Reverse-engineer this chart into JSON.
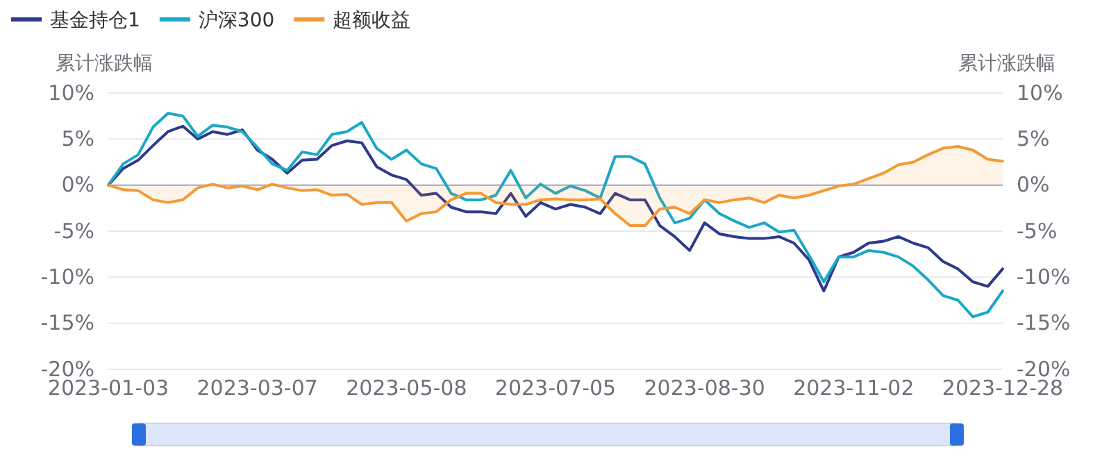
{
  "chart_data": {
    "type": "line",
    "ylabel": "累计涨跌幅",
    "y2label": "累计涨跌幅",
    "categories": [
      "2023-01-03",
      null,
      null,
      null,
      null,
      null,
      null,
      null,
      null,
      null,
      "2023-03-07",
      null,
      null,
      null,
      null,
      null,
      null,
      null,
      null,
      null,
      "2023-05-08",
      null,
      null,
      null,
      null,
      null,
      null,
      null,
      null,
      null,
      "2023-07-05",
      null,
      null,
      null,
      null,
      null,
      null,
      null,
      null,
      null,
      "2023-08-30",
      null,
      null,
      null,
      null,
      null,
      null,
      null,
      null,
      null,
      "2023-11-02",
      null,
      null,
      null,
      null,
      null,
      null,
      null,
      null,
      null,
      "2023-12-28"
    ],
    "series": [
      {
        "name": "基金持仓1",
        "color": "#2e3a8c",
        "values": [
          0,
          1.8,
          2.7,
          4.3,
          5.8,
          6.4,
          5.0,
          5.8,
          5.5,
          6.0,
          3.8,
          2.8,
          1.3,
          2.7,
          2.8,
          4.3,
          4.8,
          4.6,
          2.0,
          1.1,
          0.6,
          -1.1,
          -0.9,
          -2.4,
          -2.9,
          -2.9,
          -3.1,
          -0.9,
          -3.4,
          -1.9,
          -2.6,
          -2.1,
          -2.4,
          -3.1,
          -0.9,
          -1.6,
          -1.6,
          -4.4,
          -5.6,
          -7.1,
          -4.1,
          -5.3,
          -5.6,
          -5.8,
          -5.8,
          -5.6,
          -6.3,
          -8.1,
          -11.5,
          -7.8,
          -7.3,
          -6.3,
          -6.1,
          -5.6,
          -6.3,
          -6.8,
          -8.3,
          -9.1,
          -10.5,
          -11.0,
          -9.1
        ]
      },
      {
        "name": "沪深300",
        "color": "#1ba8c6",
        "values": [
          0,
          2.3,
          3.3,
          6.3,
          7.8,
          7.5,
          5.3,
          6.5,
          6.3,
          5.8,
          4.1,
          2.3,
          1.6,
          3.6,
          3.3,
          5.5,
          5.8,
          6.8,
          4.0,
          2.8,
          3.8,
          2.3,
          1.8,
          -0.9,
          -1.6,
          -1.6,
          -1.1,
          1.6,
          -1.4,
          0.1,
          -0.9,
          -0.1,
          -0.6,
          -1.4,
          3.1,
          3.1,
          2.3,
          -1.4,
          -4.1,
          -3.6,
          -1.6,
          -3.1,
          -3.9,
          -4.6,
          -4.1,
          -5.1,
          -4.9,
          -7.6,
          -10.5,
          -7.8,
          -7.8,
          -7.1,
          -7.3,
          -7.8,
          -8.8,
          -10.3,
          -12.0,
          -12.5,
          -14.3,
          -13.8,
          -11.5
        ]
      },
      {
        "name": "超额收益",
        "type": "area",
        "color": "#f39a37",
        "values": [
          0,
          -0.5,
          -0.6,
          -1.6,
          -1.9,
          -1.6,
          -0.3,
          0.1,
          -0.3,
          -0.1,
          -0.5,
          0.1,
          -0.3,
          -0.6,
          -0.5,
          -1.1,
          -1.0,
          -2.1,
          -1.9,
          -1.9,
          -3.9,
          -3.1,
          -2.9,
          -1.6,
          -0.9,
          -0.9,
          -1.9,
          -2.1,
          -2.1,
          -1.6,
          -1.5,
          -1.6,
          -1.6,
          -1.5,
          -3.1,
          -4.4,
          -4.4,
          -2.6,
          -2.4,
          -3.1,
          -1.6,
          -1.9,
          -1.6,
          -1.4,
          -1.9,
          -1.1,
          -1.4,
          -1.1,
          -0.6,
          -0.1,
          0.1,
          0.7,
          1.3,
          2.2,
          2.5,
          3.3,
          4.0,
          4.2,
          3.8,
          2.8,
          2.6
        ]
      }
    ],
    "ylim": [
      -20,
      10
    ],
    "yticks": [
      {
        "value": -20,
        "label": "-20%"
      },
      {
        "value": -15,
        "label": "-15%"
      },
      {
        "value": -10,
        "label": "-10%"
      },
      {
        "value": -5,
        "label": "-5%"
      },
      {
        "value": 0,
        "label": "0%"
      },
      {
        "value": 5,
        "label": "5%"
      },
      {
        "value": 10,
        "label": "10%"
      }
    ],
    "y2lim": [
      -20,
      10
    ],
    "y2ticks": [
      {
        "value": -20,
        "label": "-20%"
      },
      {
        "value": -15,
        "label": "-15%"
      },
      {
        "value": -10,
        "label": "-10%"
      },
      {
        "value": -5,
        "label": "-5%"
      },
      {
        "value": 0,
        "label": "0%"
      },
      {
        "value": 5,
        "label": "5%"
      },
      {
        "value": 10,
        "label": "10%"
      }
    ],
    "grid": "y",
    "legend": "top left",
    "marker": "none",
    "line_style": "solid"
  }
}
